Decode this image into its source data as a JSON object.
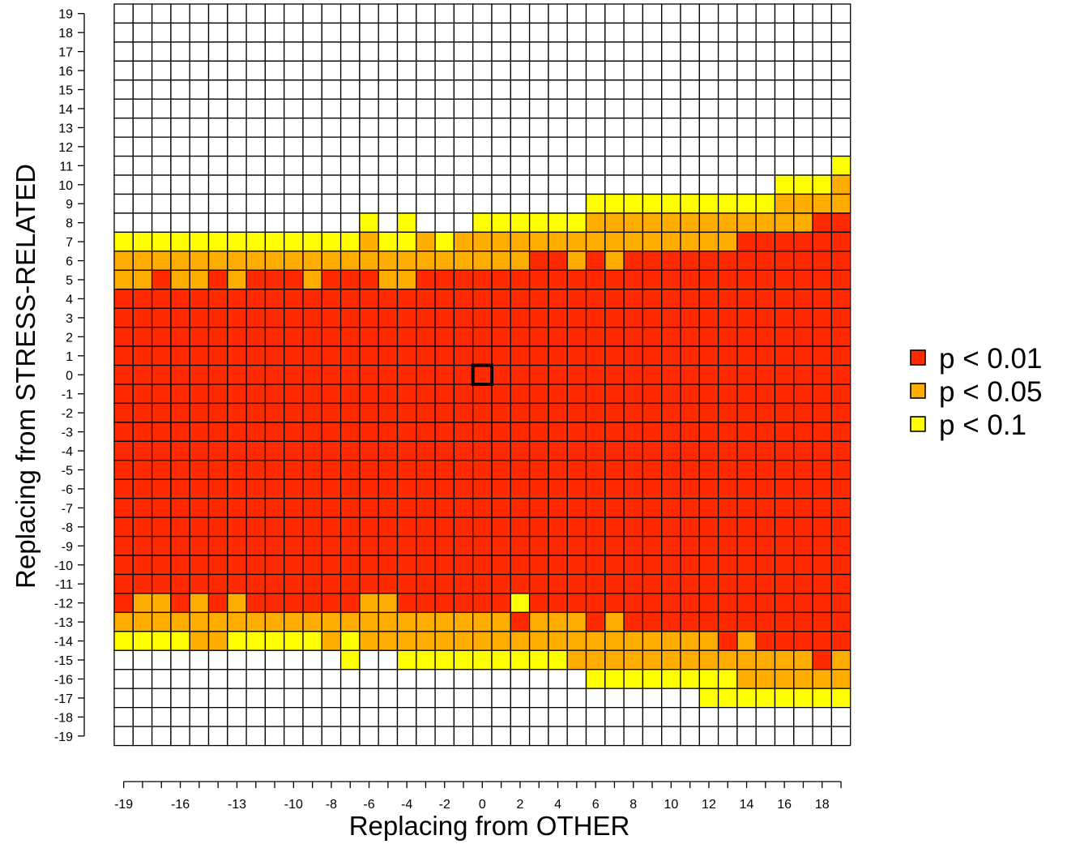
{
  "chart_data": {
    "type": "heatmap",
    "title": "",
    "xlabel": "Replacing from OTHER",
    "ylabel": "Replacing from STRESS-RELATED",
    "x_values": [
      -19,
      -18,
      -17,
      -16,
      -15,
      -14,
      -13,
      -12,
      -11,
      -10,
      -9,
      -8,
      -7,
      -6,
      -5,
      -4,
      -3,
      -2,
      -1,
      0,
      1,
      2,
      3,
      4,
      5,
      6,
      7,
      8,
      9,
      10,
      11,
      12,
      13,
      14,
      15,
      16,
      17,
      18,
      19
    ],
    "y_values": [
      19,
      18,
      17,
      16,
      15,
      14,
      13,
      12,
      11,
      10,
      9,
      8,
      7,
      6,
      5,
      4,
      3,
      2,
      1,
      0,
      -1,
      -2,
      -3,
      -4,
      -5,
      -6,
      -7,
      -8,
      -9,
      -10,
      -11,
      -12,
      -13,
      -14,
      -15,
      -16,
      -17,
      -18,
      -19
    ],
    "x_tick_labels": [
      "-19",
      "-16",
      "-13",
      "-10",
      "-8",
      "-6",
      "-4",
      "-2",
      "0",
      "2",
      "4",
      "6",
      "8",
      "10",
      "12",
      "14",
      "16",
      "18"
    ],
    "y_tick_labels": [
      "19",
      "18",
      "17",
      "16",
      "15",
      "14",
      "13",
      "12",
      "11",
      "10",
      "9",
      "8",
      "7",
      "6",
      "5",
      "4",
      "3",
      "2",
      "1",
      "0",
      "-1",
      "-2",
      "-3",
      "-4",
      "-5",
      "-6",
      "-7",
      "-8",
      "-9",
      "-10",
      "-11",
      "-12",
      "-13",
      "-14",
      "-15",
      "-16",
      "-17",
      "-18",
      "-19"
    ],
    "levels": {
      "0": {
        "label": "",
        "color": "#ffffff"
      },
      "1": {
        "label": "p < 0.01",
        "color": "#ff2a00"
      },
      "2": {
        "label": "p < 0.05",
        "color": "#ffad00"
      },
      "3": {
        "label": "p < 0.1",
        "color": "#ffff00"
      }
    },
    "legend": {
      "position": "right",
      "entries": [
        {
          "label": "p < 0.01",
          "color": "#ff2a00"
        },
        {
          "label": "p < 0.05",
          "color": "#ffad00"
        },
        {
          "label": "p < 0.1",
          "color": "#ffff00"
        }
      ]
    },
    "highlight": {
      "x": 0,
      "y": 0
    },
    "rows": [
      "000000000000000000000000000000000000000",
      "000000000000000000000000000000000000000",
      "000000000000000000000000000000000000000",
      "000000000000000000000000000000000000000",
      "000000000000000000000000000000000000000",
      "000000000000000000000000000000000000000",
      "000000000000000000000000000000000000000",
      "000000000000000000000000000000000000000",
      "000000000000000000000000000000000000003",
      "000000000000000000000000000000000003332",
      "000000000000000000000000033333333332222",
      "000000000000030300033333322222222222211",
      "333333333333323323222222222222222111111",
      "222222222222222222222211212111111111111",
      "221221211121112211111111111111111111111",
      "111111111111111111111111111111111111111",
      "111111111111111111111111111111111111111",
      "111111111111111111111111111111111111111",
      "111111111111111111111111111111111111111",
      "111111111111111111111111111111111111111",
      "111111111111111111111111111111111111111",
      "111111111111111111111111111111111111111",
      "111111111111111111111111111111111111111",
      "111111111111111111111111111111111111111",
      "111111111111111111111111111111111111111",
      "111111111111111111111111111111111111111",
      "111111111111111111111111111111111111111",
      "111111111111111111111111111111111111111",
      "111111111111111111111111111111111111111",
      "111111111111111111111111111111111111111",
      "111111111111111111111111111111111111111",
      "122121211111122111111311111111111111111",
      "222222222222222222222122212111111111111",
      "333322333332322222222222222222221211111",
      "000000000000300333333333222222222222212",
      "000000000000000000000000033333333222222",
      "000000000000000000000000000000033333333",
      "000000000000000000000000000000000000000",
      "000000000000000000000000000000000000000"
    ]
  }
}
